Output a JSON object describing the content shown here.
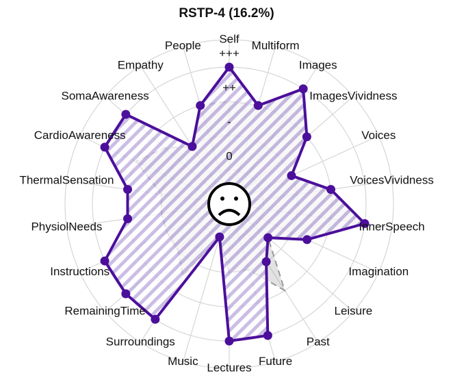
{
  "chart_data": {
    "type": "radar",
    "title": "RSTP-4 (16.2%)",
    "categories": [
      "Self",
      "Multiform",
      "Images",
      "ImagesVividness",
      "Voices",
      "VoicesVividness",
      "InnerSpeech",
      "Imagination",
      "Leisure",
      "Past",
      "Future",
      "Lectures",
      "Music",
      "Surroundings",
      "RemainingTime",
      "Instructions",
      "PhysiolNeeds",
      "ThermalSensation",
      "CardioAwareness",
      "SomaAwareness",
      "Empathy",
      "People"
    ],
    "series": [
      {
        "color": "#999999",
        "values": [
          3,
          3,
          4,
          3,
          2,
          3,
          4,
          2.5,
          1.5,
          3,
          2,
          2,
          1,
          2.5,
          2,
          2,
          2,
          2,
          3,
          2.5,
          2,
          3
        ]
      },
      {
        "color": "#4b0f9b",
        "values": [
          4,
          3,
          4,
          3,
          2,
          3,
          4,
          2.5,
          1.5,
          2,
          4,
          4,
          1,
          4,
          4,
          4,
          3,
          3,
          4,
          4,
          2,
          3
        ]
      }
    ],
    "ylim": [
      0,
      4.8
    ],
    "yticks": [
      {
        "value": 1,
        "label": "0"
      },
      {
        "value": 2,
        "label": "-"
      },
      {
        "value": 3,
        "label": "++"
      },
      {
        "value": 4,
        "label": "+++"
      }
    ],
    "grid": true
  }
}
